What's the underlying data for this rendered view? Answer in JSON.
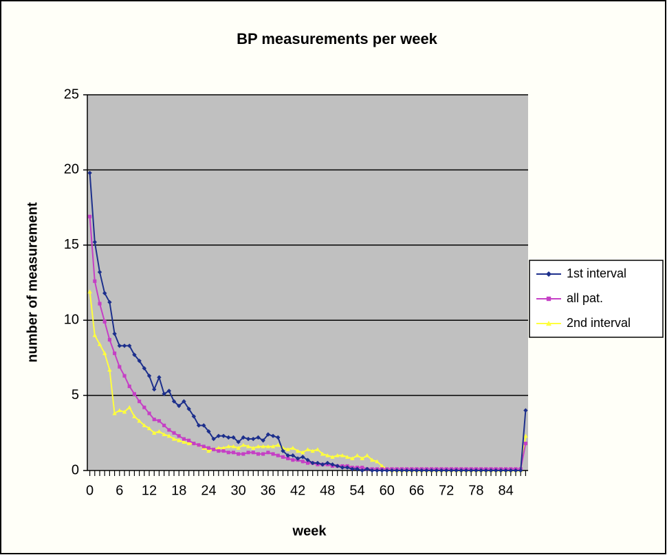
{
  "chart_data": {
    "type": "line",
    "title": "BP measurements per week",
    "x_label": "week",
    "y_label": "number of measurement",
    "x": [
      0,
      1,
      2,
      3,
      4,
      5,
      6,
      7,
      8,
      9,
      10,
      11,
      12,
      13,
      14,
      15,
      16,
      17,
      18,
      19,
      20,
      21,
      22,
      23,
      24,
      25,
      26,
      27,
      28,
      29,
      30,
      31,
      32,
      33,
      34,
      35,
      36,
      37,
      38,
      39,
      40,
      41,
      42,
      43,
      44,
      45,
      46,
      47,
      48,
      49,
      50,
      51,
      52,
      53,
      54,
      55,
      56,
      57,
      58,
      59,
      60,
      61,
      62,
      63,
      64,
      65,
      66,
      67,
      68,
      69,
      70,
      71,
      72,
      73,
      74,
      75,
      76,
      77,
      78,
      79,
      80,
      81,
      82,
      83,
      84,
      85,
      86,
      87,
      88
    ],
    "series": [
      {
        "name": "1st interval",
        "color": "#1c2f8c",
        "marker": "diamond",
        "values": [
          19.8,
          15.2,
          13.2,
          11.8,
          11.2,
          9.1,
          8.3,
          8.3,
          8.3,
          7.7,
          7.3,
          6.8,
          6.3,
          5.4,
          6.2,
          5.1,
          5.3,
          4.6,
          4.3,
          4.6,
          4.1,
          3.6,
          3.0,
          3.0,
          2.6,
          2.1,
          2.3,
          2.3,
          2.2,
          2.2,
          1.9,
          2.2,
          2.1,
          2.1,
          2.2,
          2.0,
          2.4,
          2.3,
          2.2,
          1.3,
          1.0,
          1.0,
          0.8,
          0.9,
          0.7,
          0.5,
          0.5,
          0.4,
          0.5,
          0.4,
          0.3,
          0.2,
          0.2,
          0.1,
          0.1,
          0,
          0.1,
          0,
          0,
          0,
          0,
          0,
          0,
          0,
          0,
          0,
          0,
          0,
          0,
          0,
          0,
          0,
          0,
          0,
          0,
          0,
          0,
          0,
          0,
          0,
          0,
          0,
          0,
          0,
          0,
          0,
          0,
          0,
          4.0
        ]
      },
      {
        "name": "all pat.",
        "color": "#c53fc5",
        "marker": "square",
        "values": [
          16.9,
          12.6,
          11.1,
          9.9,
          8.7,
          7.8,
          6.9,
          6.3,
          5.6,
          5.1,
          4.6,
          4.2,
          3.8,
          3.4,
          3.3,
          3.0,
          2.7,
          2.5,
          2.3,
          2.1,
          2.0,
          1.8,
          1.7,
          1.6,
          1.5,
          1.4,
          1.3,
          1.3,
          1.2,
          1.2,
          1.1,
          1.1,
          1.2,
          1.2,
          1.1,
          1.1,
          1.2,
          1.1,
          1.0,
          0.9,
          0.8,
          0.7,
          0.7,
          0.6,
          0.5,
          0.5,
          0.4,
          0.4,
          0.4,
          0.3,
          0.3,
          0.3,
          0.3,
          0.2,
          0.2,
          0.2,
          0.1,
          0.1,
          0.1,
          0.1,
          0.1,
          0.1,
          0.1,
          0.1,
          0.1,
          0.1,
          0.1,
          0.1,
          0.1,
          0.1,
          0.1,
          0.1,
          0.1,
          0.1,
          0.1,
          0.1,
          0.1,
          0.1,
          0.1,
          0.1,
          0.1,
          0.1,
          0.1,
          0.1,
          0.1,
          0.1,
          0.1,
          0.1,
          1.8
        ]
      },
      {
        "name": "2nd interval",
        "color": "#ffff3c",
        "marker": "triangle",
        "values": [
          11.9,
          9.0,
          8.4,
          7.8,
          6.7,
          3.8,
          4.0,
          3.9,
          4.2,
          3.6,
          3.3,
          3.0,
          2.8,
          2.5,
          2.6,
          2.4,
          2.3,
          2.1,
          2.0,
          1.9,
          1.8,
          1.8,
          1.7,
          1.5,
          1.3,
          1.4,
          1.5,
          1.5,
          1.6,
          1.6,
          1.5,
          1.7,
          1.6,
          1.5,
          1.6,
          1.6,
          1.6,
          1.6,
          1.7,
          1.5,
          1.4,
          1.5,
          1.3,
          1.2,
          1.4,
          1.3,
          1.4,
          1.1,
          1.0,
          0.9,
          1.0,
          1.0,
          0.9,
          0.8,
          1.0,
          0.8,
          1.0,
          0.7,
          0.6,
          0.3,
          0.1,
          0,
          0,
          0,
          0,
          0,
          0,
          0,
          0,
          0,
          0,
          0,
          0,
          0,
          0,
          0,
          0,
          0,
          0,
          0,
          0,
          0,
          0,
          0,
          0,
          0,
          0,
          0,
          2.3
        ]
      }
    ],
    "xlim": [
      -0.5,
      88.5
    ],
    "xticks": [
      0,
      6,
      12,
      18,
      24,
      30,
      36,
      42,
      48,
      54,
      60,
      66,
      72,
      78,
      84
    ],
    "ylim": [
      0,
      25
    ],
    "yticks": [
      0,
      5,
      10,
      15,
      20,
      25
    ],
    "grid": true,
    "legend": "right"
  }
}
